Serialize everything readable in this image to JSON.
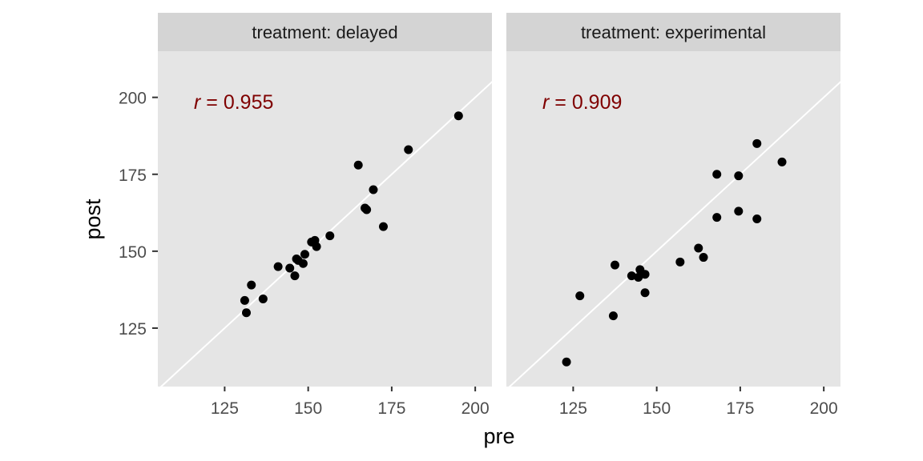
{
  "chart_data": {
    "type": "scatter",
    "facet_variable": "treatment",
    "xlabel": "pre",
    "ylabel": "post",
    "xlim": [
      105,
      205
    ],
    "ylim": [
      106,
      215
    ],
    "x_ticks": [
      125,
      150,
      175,
      200
    ],
    "y_ticks": [
      125,
      150,
      175,
      200
    ],
    "reference_line": "y = x",
    "background_color": "#e5e5e5",
    "strip_color": "#d4d4d4",
    "point_color": "#000000",
    "line_color": "#ffffff",
    "annotation_color": "#7f0000",
    "grid": false,
    "panels": [
      {
        "strip": "treatment: delayed",
        "annotation": {
          "symbol": "r",
          "text": " = 0.955"
        },
        "points": [
          {
            "x": 195,
            "y": 194
          },
          {
            "x": 180,
            "y": 183
          },
          {
            "x": 169.5,
            "y": 170
          },
          {
            "x": 165,
            "y": 178
          },
          {
            "x": 167,
            "y": 164
          },
          {
            "x": 167.5,
            "y": 163.5
          },
          {
            "x": 172.5,
            "y": 158
          },
          {
            "x": 156.5,
            "y": 155
          },
          {
            "x": 152,
            "y": 153.5
          },
          {
            "x": 151,
            "y": 153
          },
          {
            "x": 152.5,
            "y": 151.5
          },
          {
            "x": 149,
            "y": 149
          },
          {
            "x": 146.5,
            "y": 147.5
          },
          {
            "x": 147,
            "y": 147
          },
          {
            "x": 148.5,
            "y": 146
          },
          {
            "x": 141,
            "y": 145
          },
          {
            "x": 144.5,
            "y": 144.5
          },
          {
            "x": 146,
            "y": 142
          },
          {
            "x": 133,
            "y": 139
          },
          {
            "x": 131,
            "y": 134
          },
          {
            "x": 136.5,
            "y": 134.5
          },
          {
            "x": 131.5,
            "y": 130
          }
        ]
      },
      {
        "strip": "treatment: experimental",
        "annotation": {
          "symbol": "r",
          "text": " = 0.909"
        },
        "points": [
          {
            "x": 180,
            "y": 185
          },
          {
            "x": 187.5,
            "y": 179
          },
          {
            "x": 168,
            "y": 175
          },
          {
            "x": 174.5,
            "y": 174.5
          },
          {
            "x": 168,
            "y": 161
          },
          {
            "x": 174.5,
            "y": 163
          },
          {
            "x": 180,
            "y": 160.5
          },
          {
            "x": 162.5,
            "y": 151
          },
          {
            "x": 164,
            "y": 148
          },
          {
            "x": 157,
            "y": 146.5
          },
          {
            "x": 137.5,
            "y": 145.5
          },
          {
            "x": 145,
            "y": 144
          },
          {
            "x": 146.5,
            "y": 142.5
          },
          {
            "x": 142.5,
            "y": 142
          },
          {
            "x": 144.5,
            "y": 141.5
          },
          {
            "x": 146.5,
            "y": 136.5
          },
          {
            "x": 127,
            "y": 135.5
          },
          {
            "x": 137,
            "y": 129
          },
          {
            "x": 123,
            "y": 114
          }
        ]
      }
    ]
  }
}
